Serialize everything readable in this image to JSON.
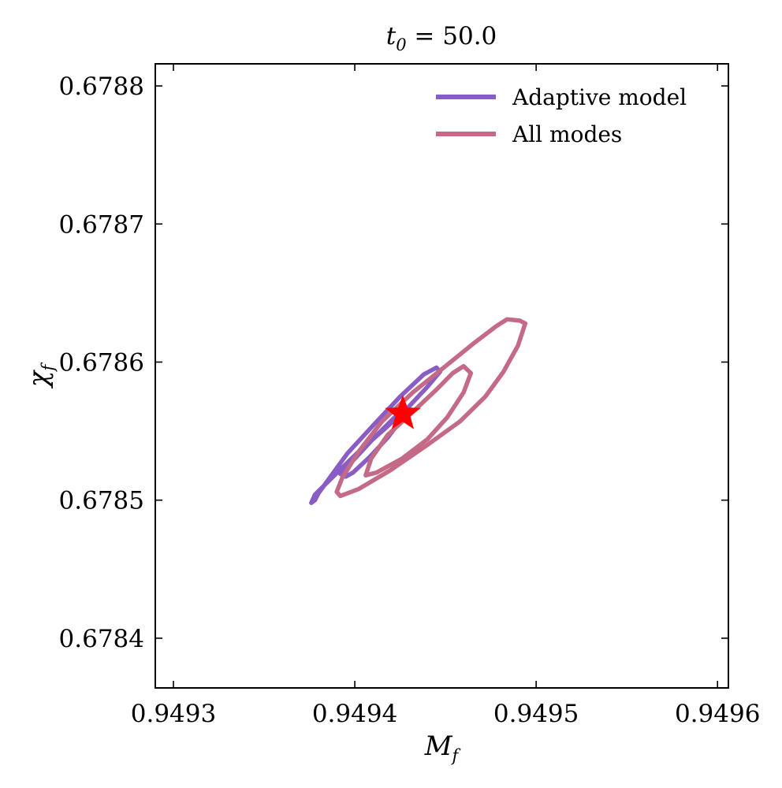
{
  "chart_data": {
    "type": "line",
    "title": {
      "main": "t",
      "sub": "0",
      "rest": " = 50.0"
    },
    "xlabel": {
      "main": "M",
      "sub": "f"
    },
    "ylabel": {
      "main": "χ",
      "sub": "f"
    },
    "xlim": [
      0.94929,
      0.949606
    ],
    "ylim": [
      0.678364,
      0.678816
    ],
    "xticks": [
      0.9493,
      0.9494,
      0.9495,
      0.9496
    ],
    "xtick_labels": [
      "0.9493",
      "0.9494",
      "0.9495",
      "0.9496"
    ],
    "yticks": [
      0.6784,
      0.6785,
      0.6786,
      0.6787,
      0.6788
    ],
    "ytick_labels": [
      "0.6784",
      "0.6785",
      "0.6786",
      "0.6787",
      "0.6788"
    ],
    "grid": false,
    "legend_position": "top-right",
    "series": [
      {
        "name": "Adaptive model",
        "color": "#8a5dc4",
        "contours": [
          {
            "level": "outer",
            "points": [
              [
                0.949378,
                0.6785
              ],
              [
                0.949376,
                0.678498
              ],
              [
                0.949378,
                0.678504
              ],
              [
                0.949388,
                0.678517
              ],
              [
                0.949402,
                0.678535
              ],
              [
                0.949416,
                0.678551
              ],
              [
                0.94943,
                0.678568
              ],
              [
                0.94944,
                0.678582
              ],
              [
                0.949447,
                0.678593
              ],
              [
                0.949445,
                0.678596
              ],
              [
                0.949438,
                0.678591
              ],
              [
                0.949425,
                0.678575
              ],
              [
                0.94941,
                0.678554
              ],
              [
                0.949396,
                0.678534
              ],
              [
                0.949386,
                0.678516
              ],
              [
                0.94938,
                0.678505
              ],
              [
                0.949378,
                0.6785
              ]
            ]
          },
          {
            "level": "inner",
            "points": [
              [
                0.949395,
                0.678517
              ],
              [
                0.949392,
                0.678519
              ],
              [
                0.9494,
                0.67853
              ],
              [
                0.949412,
                0.678547
              ],
              [
                0.949422,
                0.67856
              ],
              [
                0.949428,
                0.678565
              ],
              [
                0.949426,
                0.678559
              ],
              [
                0.949418,
                0.678545
              ],
              [
                0.949408,
                0.678531
              ],
              [
                0.949399,
                0.67852
              ],
              [
                0.949395,
                0.678517
              ]
            ]
          }
        ]
      },
      {
        "name": "All modes",
        "color": "#c46a86",
        "contours": [
          {
            "level": "outer",
            "points": [
              [
                0.94939,
                0.678506
              ],
              [
                0.949392,
                0.678503
              ],
              [
                0.949402,
                0.678508
              ],
              [
                0.94942,
                0.678522
              ],
              [
                0.94944,
                0.67854
              ],
              [
                0.949458,
                0.678557
              ],
              [
                0.949472,
                0.678575
              ],
              [
                0.949482,
                0.678593
              ],
              [
                0.94949,
                0.678612
              ],
              [
                0.949494,
                0.678628
              ],
              [
                0.949491,
                0.67863
              ],
              [
                0.949484,
                0.678631
              ],
              [
                0.949478,
                0.678626
              ],
              [
                0.949466,
                0.678614
              ],
              [
                0.94945,
                0.678597
              ],
              [
                0.949432,
                0.678578
              ],
              [
                0.949415,
                0.678557
              ],
              [
                0.949402,
                0.678535
              ],
              [
                0.949393,
                0.678516
              ],
              [
                0.94939,
                0.678506
              ]
            ]
          },
          {
            "level": "inner",
            "points": [
              [
                0.949406,
                0.678518
              ],
              [
                0.949412,
                0.67852
              ],
              [
                0.949426,
                0.67853
              ],
              [
                0.94944,
                0.678544
              ],
              [
                0.949451,
                0.67856
              ],
              [
                0.94946,
                0.678578
              ],
              [
                0.949464,
                0.678592
              ],
              [
                0.94946,
                0.678597
              ],
              [
                0.949454,
                0.678592
              ],
              [
                0.949445,
                0.67858
              ],
              [
                0.949432,
                0.678564
              ],
              [
                0.949418,
                0.678547
              ],
              [
                0.949409,
                0.67853
              ],
              [
                0.949406,
                0.678518
              ]
            ]
          }
        ]
      }
    ],
    "true_value": {
      "x": 0.9494265,
      "y": 0.6785625,
      "marker": "star",
      "color": "#ff0000"
    }
  }
}
